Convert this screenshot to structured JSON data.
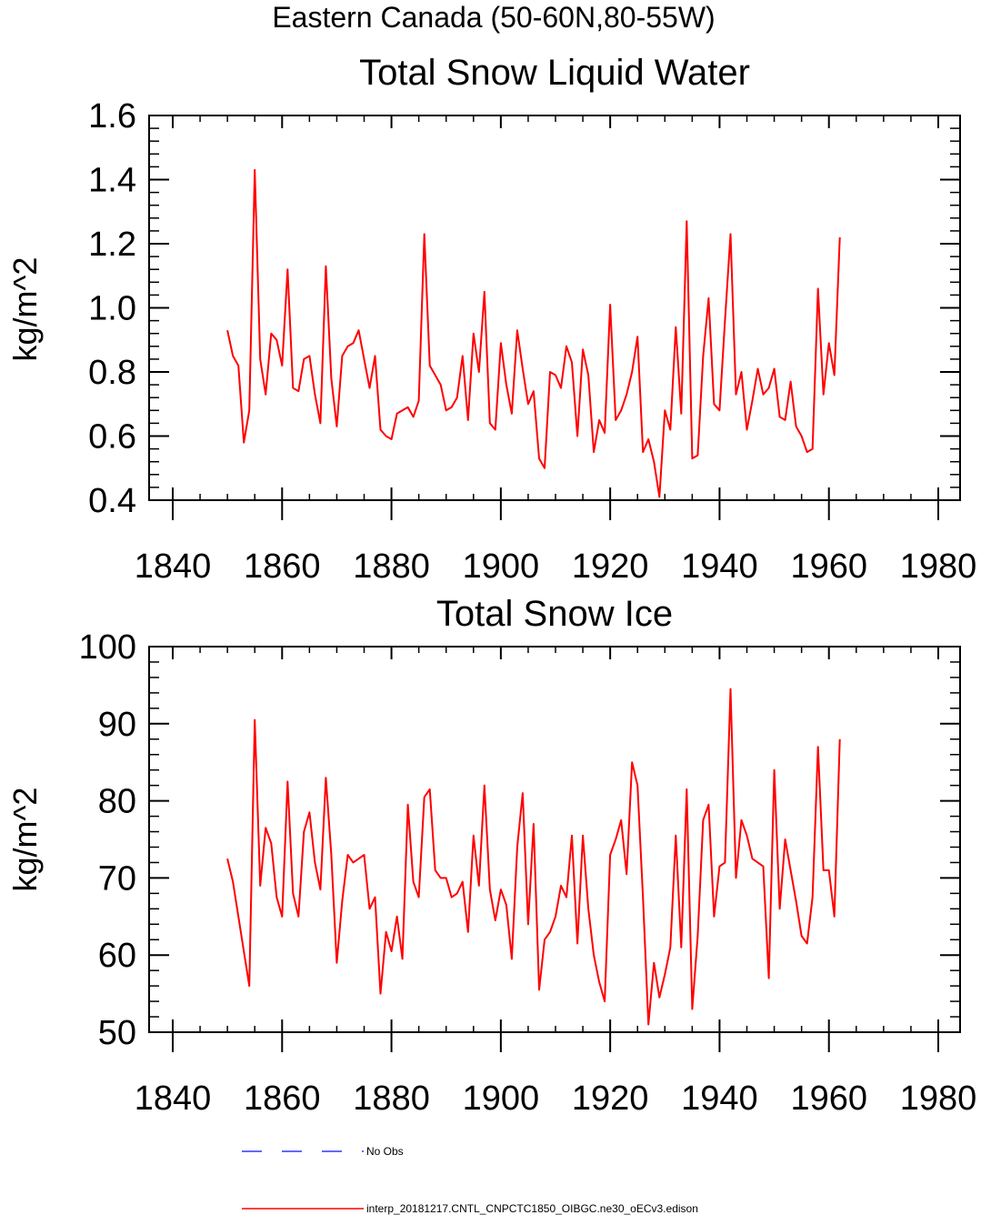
{
  "suptitle": "Eastern Canada (50-60N,80-55W)",
  "chart_data": [
    {
      "type": "line",
      "title": "Total Snow Liquid Water",
      "xlabel": "",
      "ylabel": "kg/m^2",
      "xlim": [
        1840,
        1980
      ],
      "ylim": [
        0.4,
        1.6
      ],
      "xticks": [
        1840,
        1860,
        1880,
        1900,
        1920,
        1940,
        1960,
        1980
      ],
      "xtick_labels": [
        "1840",
        "1860",
        "1880",
        "1900",
        "1920",
        "1940",
        "1960",
        "1980"
      ],
      "yticks": [
        0.4,
        0.6,
        0.8,
        1.0,
        1.2,
        1.4,
        1.6
      ],
      "ytick_labels": [
        "0.4",
        "0.6",
        "0.8",
        "1.0",
        "1.2",
        "1.4",
        "1.6"
      ],
      "x_start": 1850,
      "series": [
        {
          "name": "interp_20181217.CNTL_CNPCTC1850_OIBGC.ne30_oECv3.edison",
          "color": "#ff0000",
          "values": [
            0.93,
            0.85,
            0.82,
            0.58,
            0.68,
            1.43,
            0.84,
            0.73,
            0.92,
            0.9,
            0.82,
            1.12,
            0.75,
            0.74,
            0.84,
            0.85,
            0.73,
            0.64,
            1.13,
            0.78,
            0.63,
            0.85,
            0.88,
            0.89,
            0.93,
            0.84,
            0.75,
            0.85,
            0.62,
            0.6,
            0.59,
            0.67,
            0.68,
            0.69,
            0.66,
            0.71,
            1.23,
            0.82,
            0.79,
            0.76,
            0.68,
            0.69,
            0.72,
            0.85,
            0.65,
            0.92,
            0.8,
            1.05,
            0.64,
            0.62,
            0.89,
            0.76,
            0.67,
            0.93,
            0.81,
            0.7,
            0.74,
            0.53,
            0.5,
            0.8,
            0.79,
            0.75,
            0.88,
            0.83,
            0.6,
            0.87,
            0.79,
            0.55,
            0.65,
            0.61,
            1.01,
            0.65,
            0.68,
            0.73,
            0.8,
            0.91,
            0.55,
            0.59,
            0.52,
            0.41,
            0.68,
            0.62,
            0.94,
            0.67,
            1.27,
            0.53,
            0.54,
            0.85,
            1.03,
            0.7,
            0.68,
            0.96,
            1.23,
            0.73,
            0.8,
            0.62,
            0.71,
            0.81,
            0.73,
            0.75,
            0.81,
            0.66,
            0.65,
            0.77,
            0.63,
            0.6,
            0.55,
            0.56,
            1.06,
            0.73,
            0.89,
            0.79,
            1.22
          ]
        }
      ]
    },
    {
      "type": "line",
      "title": "Total Snow Ice",
      "xlabel": "",
      "ylabel": "kg/m^2",
      "xlim": [
        1840,
        1980
      ],
      "ylim": [
        50,
        100
      ],
      "xticks": [
        1840,
        1860,
        1880,
        1900,
        1920,
        1940,
        1960,
        1980
      ],
      "xtick_labels": [
        "1840",
        "1860",
        "1880",
        "1900",
        "1920",
        "1940",
        "1960",
        "1980"
      ],
      "yticks": [
        50,
        60,
        70,
        80,
        90,
        100
      ],
      "ytick_labels": [
        "50",
        "60",
        "70",
        "80",
        "90",
        "100"
      ],
      "x_start": 1850,
      "series": [
        {
          "name": "interp_20181217.CNTL_CNPCTC1850_OIBGC.ne30_oECv3.edison",
          "color": "#ff0000",
          "values": [
            72.5,
            69.5,
            65.0,
            60.5,
            56.0,
            90.5,
            69.0,
            76.5,
            74.5,
            67.5,
            65.0,
            82.5,
            68.0,
            65.0,
            76.0,
            78.5,
            72.0,
            68.5,
            83.0,
            73.0,
            59.0,
            67.0,
            73.0,
            72.0,
            72.5,
            73.0,
            66.0,
            67.5,
            55.0,
            63.0,
            60.5,
            65.0,
            59.5,
            79.5,
            69.5,
            67.5,
            80.5,
            81.5,
            71.0,
            70.0,
            70.0,
            67.5,
            68.0,
            69.5,
            63.0,
            75.5,
            69.0,
            82.0,
            68.5,
            64.5,
            68.5,
            66.5,
            59.5,
            74.0,
            81.0,
            64.0,
            77.0,
            55.5,
            62.0,
            63.0,
            65.0,
            69.0,
            67.5,
            75.5,
            61.5,
            75.5,
            66.0,
            60.0,
            56.5,
            54.0,
            73.0,
            75.0,
            77.5,
            70.5,
            85.0,
            82.0,
            67.5,
            51.0,
            59.0,
            54.5,
            57.5,
            61.0,
            75.5,
            61.0,
            81.5,
            53.0,
            62.5,
            77.5,
            79.5,
            65.0,
            71.5,
            72.0,
            94.5,
            70.0,
            77.5,
            75.5,
            72.5,
            72.0,
            71.5,
            57.0,
            84.0,
            66.0,
            75.0,
            71.0,
            67.0,
            62.5,
            61.5,
            67.5,
            87.0,
            71.0,
            71.0,
            65.0,
            88.0
          ]
        }
      ]
    }
  ],
  "legend": [
    {
      "label": "No Obs",
      "color": "#3333ff",
      "style": "dashed"
    },
    {
      "label": "interp_20181217.CNTL_CNPCTC1850_OIBGC.ne30_oECv3.edison",
      "color": "#ff0000",
      "style": "solid"
    }
  ]
}
